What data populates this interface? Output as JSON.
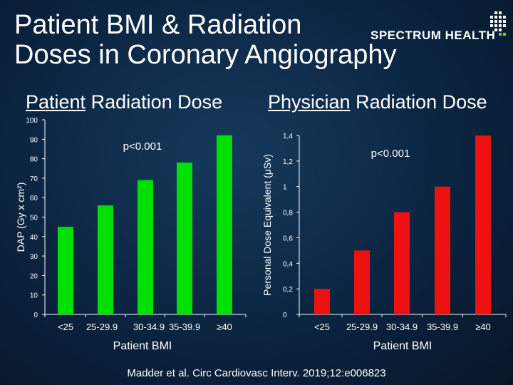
{
  "title_line1": "Patient BMI & Radiation",
  "title_line2": "Doses in Coronary Angiography",
  "brand": "SPECTRUM HEALTH",
  "subtitle_left": {
    "underlined": "Patient",
    "rest": " Radiation Dose"
  },
  "subtitle_right": {
    "underlined": "Physician",
    "rest": " Radiation Dose"
  },
  "citation": "Madder et al. Circ Cardiovasc Interv. 2019;12:e006823",
  "colors": {
    "left_bars": "#00e000",
    "right_bars": "#ee1111"
  },
  "chart_data": [
    {
      "type": "bar",
      "categories": [
        "<25",
        "25-29.9",
        "30-34.9",
        "35-39.9",
        "≥40"
      ],
      "values": [
        45,
        56,
        69,
        78,
        92
      ],
      "ylabel": "DAP (Gy x cm²)",
      "xlabel": "Patient BMI",
      "ylim": [
        0,
        100
      ],
      "yticks": [
        "0",
        "10",
        "20",
        "30",
        "40",
        "50",
        "60",
        "70",
        "80",
        "90",
        "100"
      ],
      "annotation": "p<0.001"
    },
    {
      "type": "bar",
      "categories": [
        "<25",
        "25-29.9",
        "30-34.9",
        "35-39.9",
        "≥40"
      ],
      "values": [
        0.2,
        0.5,
        0.8,
        1.0,
        1.4
      ],
      "ylabel": "Personal Dose Equivalent (μSv)",
      "xlabel": "Patient BMI",
      "ylim": [
        0,
        1.4
      ],
      "yticks": [
        "0",
        "0,2",
        "0,4",
        "0,6",
        "0,8",
        "1",
        "1,2",
        "1,4"
      ],
      "annotation": "p<0.001"
    }
  ]
}
